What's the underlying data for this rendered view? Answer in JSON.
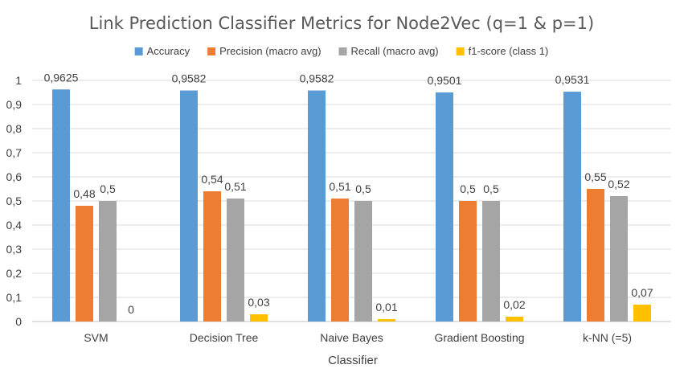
{
  "chart_data": {
    "type": "bar",
    "title": "Link Prediction Classifier Metrics for Node2Vec (q=1 & p=1)",
    "xlabel": "Classifier",
    "ylabel": "",
    "ylim": [
      0,
      1
    ],
    "yticks": [
      "0",
      "0,1",
      "0,2",
      "0,3",
      "0,4",
      "0,5",
      "0,6",
      "0,7",
      "0,8",
      "0,9",
      "1"
    ],
    "categories": [
      "SVM",
      "Decision Tree",
      "Naive Bayes",
      "Gradient Boosting",
      "k-NN (=5)"
    ],
    "legend_position": "top",
    "grid": true,
    "series": [
      {
        "name": "Accuracy",
        "color": "#5B9BD5",
        "values": [
          0.9625,
          0.9582,
          0.9582,
          0.9501,
          0.9531
        ],
        "labels": [
          "0,9625",
          "0,9582",
          "0,9582",
          "0,9501",
          "0,9531"
        ]
      },
      {
        "name": "Precision (macro avg)",
        "color": "#ED7D31",
        "values": [
          0.48,
          0.54,
          0.51,
          0.5,
          0.55
        ],
        "labels": [
          "0,48",
          "0,54",
          "0,51",
          "0,5",
          "0,55"
        ]
      },
      {
        "name": "Recall (macro avg)",
        "color": "#A5A5A5",
        "values": [
          0.5,
          0.51,
          0.5,
          0.5,
          0.52
        ],
        "labels": [
          "0,5",
          "0,51",
          "0,5",
          "0,5",
          "0,52"
        ]
      },
      {
        "name": "f1-score (class 1)",
        "color": "#FFC000",
        "values": [
          0,
          0.03,
          0.01,
          0.02,
          0.07
        ],
        "labels": [
          "0",
          "0,03",
          "0,01",
          "0,02",
          "0,07"
        ]
      }
    ]
  }
}
